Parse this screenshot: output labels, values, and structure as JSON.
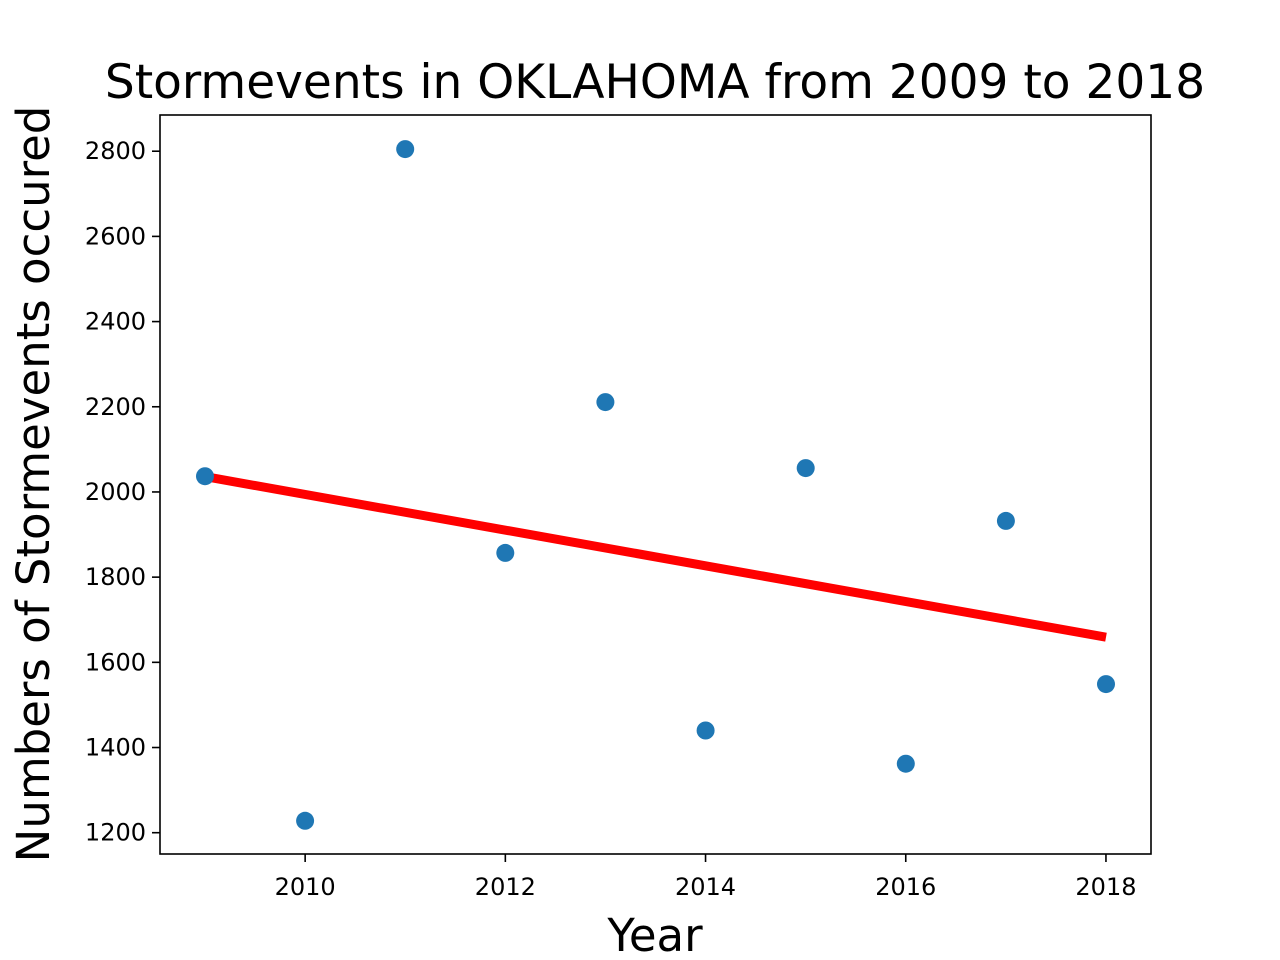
{
  "chart_data": {
    "type": "scatter",
    "title": "Stormevents in OKLAHOMA from 2009 to 2018",
    "xlabel": "Year",
    "ylabel": "Numbers of Stormevents occured",
    "xlim": [
      2008.55,
      2018.45
    ],
    "ylim": [
      1150,
      2885
    ],
    "x_ticks": [
      2010,
      2012,
      2014,
      2016,
      2018
    ],
    "y_ticks": [
      1200,
      1400,
      1600,
      1800,
      2000,
      2200,
      2400,
      2600,
      2800
    ],
    "grid": false,
    "series": [
      {
        "type": "scatter",
        "color": "#1f77b4",
        "x": [
          2009,
          2010,
          2011,
          2012,
          2013,
          2014,
          2015,
          2016,
          2017,
          2018
        ],
        "y": [
          2037,
          1228,
          2805,
          1857,
          2211,
          1440,
          2056,
          1362,
          1932,
          1549
        ]
      },
      {
        "type": "line",
        "color": "#ff0000",
        "x": [
          2009,
          2018
        ],
        "y": [
          2036,
          1659
        ]
      }
    ]
  }
}
